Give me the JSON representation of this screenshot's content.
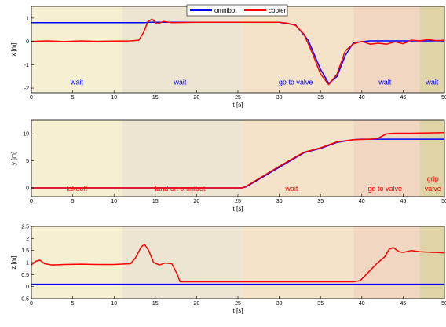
{
  "colors": {
    "omnibot": "#0000ff",
    "copter": "#ff0000",
    "phases": [
      "#f5f0d2",
      "#ebe5d2",
      "#f4e3c8",
      "#f1d6c2",
      "#dfd4a6"
    ]
  },
  "phase_boundaries": [
    0,
    11,
    25.5,
    39,
    47,
    50
  ],
  "chart_data": [
    {
      "type": "line",
      "panel": "x",
      "xlabel": "t [s]",
      "ylabel": "x [m]",
      "xlim": [
        0,
        50
      ],
      "ylim": [
        -2.2,
        1.5
      ],
      "xticks": [
        "0",
        "5",
        "10",
        "15",
        "20",
        "25",
        "30",
        "35",
        "40",
        "45",
        "50"
      ],
      "yticks": [
        "-2",
        "-1",
        "0",
        "1"
      ],
      "legend": {
        "position": "top-center",
        "entries": [
          "omnibot",
          "copter"
        ]
      },
      "annotations": [
        {
          "text": "wait",
          "x": 5.5,
          "y": -1.85,
          "color": "#0000ff"
        },
        {
          "text": "wait",
          "x": 18,
          "y": -1.85,
          "color": "#0000ff"
        },
        {
          "text": "go to valve",
          "x": 32,
          "y": -1.85,
          "color": "#0000ff"
        },
        {
          "text": "wait",
          "x": 42.8,
          "y": -1.85,
          "color": "#0000ff"
        },
        {
          "text": "wait",
          "x": 48.5,
          "y": -1.85,
          "color": "#0000ff"
        }
      ],
      "series": [
        {
          "name": "omnibot",
          "points": [
            [
              0,
              0.8
            ],
            [
              13.8,
              0.8
            ],
            [
              14.3,
              0.82
            ],
            [
              25.5,
              0.82
            ],
            [
              30,
              0.82
            ],
            [
              32,
              0.7
            ],
            [
              33.5,
              0.05
            ],
            [
              35,
              -1.2
            ],
            [
              36,
              -1.8
            ],
            [
              37,
              -1.5
            ],
            [
              38,
              -0.6
            ],
            [
              39,
              -0.05
            ],
            [
              41,
              0.02
            ],
            [
              50,
              0.02
            ]
          ]
        },
        {
          "name": "copter",
          "points": [
            [
              0,
              0
            ],
            [
              2,
              0.02
            ],
            [
              4,
              -0.01
            ],
            [
              6,
              0.02
            ],
            [
              8,
              0
            ],
            [
              10,
              0.01
            ],
            [
              12,
              0.02
            ],
            [
              13,
              0.05
            ],
            [
              13.6,
              0.4
            ],
            [
              14.1,
              0.85
            ],
            [
              14.6,
              0.95
            ],
            [
              15.2,
              0.75
            ],
            [
              16,
              0.85
            ],
            [
              17,
              0.8
            ],
            [
              20,
              0.82
            ],
            [
              25.5,
              0.82
            ],
            [
              30,
              0.82
            ],
            [
              31,
              0.78
            ],
            [
              32,
              0.68
            ],
            [
              33,
              0.3
            ],
            [
              34,
              -0.5
            ],
            [
              35,
              -1.4
            ],
            [
              36,
              -1.85
            ],
            [
              37,
              -1.4
            ],
            [
              38,
              -0.4
            ],
            [
              39,
              -0.1
            ],
            [
              40,
              0
            ],
            [
              41,
              -0.12
            ],
            [
              42,
              -0.08
            ],
            [
              43,
              -0.12
            ],
            [
              44,
              -0.02
            ],
            [
              45,
              -0.1
            ],
            [
              46,
              0.05
            ],
            [
              47,
              0.02
            ],
            [
              48,
              0.08
            ],
            [
              49,
              0.03
            ],
            [
              50,
              0.05
            ]
          ]
        }
      ]
    },
    {
      "type": "line",
      "panel": "y",
      "xlabel": "t [s]",
      "ylabel": "y [m]",
      "xlim": [
        0,
        50
      ],
      "ylim": [
        -1.6,
        12.5
      ],
      "xticks": [
        "0",
        "5",
        "10",
        "15",
        "20",
        "25",
        "30",
        "35",
        "40",
        "45",
        "50"
      ],
      "yticks": [
        "0",
        "5",
        "10"
      ],
      "annotations": [
        {
          "text": "takeoff",
          "x": 5.5,
          "y": -0.6,
          "color": "#ff0000"
        },
        {
          "text": "land on omnibot",
          "x": 18,
          "y": -0.6,
          "color": "#ff0000"
        },
        {
          "text": "wait",
          "x": 31.5,
          "y": -0.6,
          "color": "#ff0000"
        },
        {
          "text": "go to valve",
          "x": 42.8,
          "y": -0.6,
          "color": "#ff0000"
        },
        {
          "text": "grip",
          "x": 48.6,
          "y": 1.2,
          "color": "#ff0000"
        },
        {
          "text": "valve",
          "x": 48.6,
          "y": -0.6,
          "color": "#ff0000"
        }
      ],
      "series": [
        {
          "name": "omnibot",
          "points": [
            [
              0,
              0
            ],
            [
              25.5,
              0
            ],
            [
              26,
              0.2
            ],
            [
              30,
              3.8
            ],
            [
              33,
              6.5
            ],
            [
              35,
              7.3
            ],
            [
              37,
              8.4
            ],
            [
              39,
              8.9
            ],
            [
              40,
              9
            ],
            [
              50,
              9
            ]
          ]
        },
        {
          "name": "copter",
          "points": [
            [
              0,
              0
            ],
            [
              25.5,
              0
            ],
            [
              26,
              0.3
            ],
            [
              30,
              4
            ],
            [
              33,
              6.6
            ],
            [
              35,
              7.4
            ],
            [
              37,
              8.5
            ],
            [
              39,
              8.9
            ],
            [
              41,
              9
            ],
            [
              42,
              9.2
            ],
            [
              43,
              10
            ],
            [
              44,
              10.1
            ],
            [
              46,
              10.1
            ],
            [
              50,
              10.2
            ]
          ]
        }
      ]
    },
    {
      "type": "line",
      "panel": "z",
      "xlabel": "t [s]",
      "ylabel": "z [m]",
      "xlim": [
        0,
        50
      ],
      "ylim": [
        -0.5,
        2.5
      ],
      "xticks": [
        "0",
        "5",
        "10",
        "15",
        "20",
        "25",
        "30",
        "35",
        "40",
        "45",
        "50"
      ],
      "yticks": [
        "-0.5",
        "0",
        "0.5",
        "1",
        "1.5",
        "2",
        "2.5"
      ],
      "series": [
        {
          "name": "omnibot",
          "points": [
            [
              0,
              0.1
            ],
            [
              50,
              0.1
            ]
          ]
        },
        {
          "name": "copter",
          "points": [
            [
              0,
              0.9
            ],
            [
              0.5,
              1.05
            ],
            [
              1,
              1.1
            ],
            [
              1.6,
              0.95
            ],
            [
              2.5,
              0.9
            ],
            [
              4,
              0.92
            ],
            [
              6,
              0.93
            ],
            [
              8,
              0.92
            ],
            [
              10,
              0.92
            ],
            [
              12,
              0.95
            ],
            [
              12.6,
              1.2
            ],
            [
              13.3,
              1.65
            ],
            [
              13.7,
              1.75
            ],
            [
              14.2,
              1.5
            ],
            [
              14.8,
              1.0
            ],
            [
              15.5,
              0.9
            ],
            [
              16.2,
              0.98
            ],
            [
              17,
              0.95
            ],
            [
              17.6,
              0.55
            ],
            [
              18,
              0.2
            ],
            [
              20,
              0.2
            ],
            [
              25.5,
              0.2
            ],
            [
              30,
              0.2
            ],
            [
              35,
              0.2
            ],
            [
              39,
              0.2
            ],
            [
              39.8,
              0.25
            ],
            [
              40.8,
              0.6
            ],
            [
              41.8,
              0.95
            ],
            [
              42.3,
              1.1
            ],
            [
              42.8,
              1.25
            ],
            [
              43.3,
              1.55
            ],
            [
              43.8,
              1.62
            ],
            [
              44.5,
              1.45
            ],
            [
              45,
              1.42
            ],
            [
              46,
              1.5
            ],
            [
              47,
              1.45
            ],
            [
              48,
              1.43
            ],
            [
              49,
              1.42
            ],
            [
              50,
              1.4
            ]
          ]
        }
      ]
    }
  ]
}
